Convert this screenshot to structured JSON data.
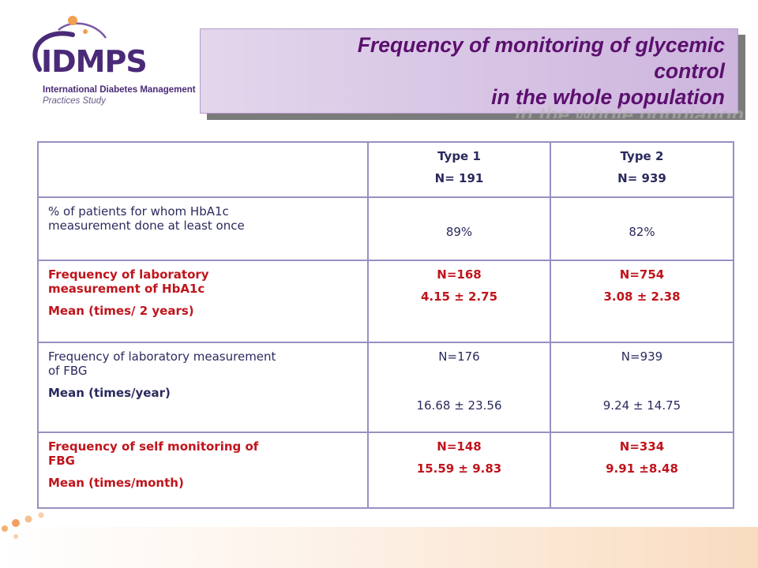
{
  "logo": {
    "abbrev": "IDMPS",
    "line1": "International Diabetes Management",
    "line2": "Practices Study"
  },
  "title": {
    "line1": "Frequency of monitoring of glycemic",
    "line2": "control",
    "line3": "in the whole population"
  },
  "table": {
    "header": {
      "type1_label": "Type 1",
      "type1_n": "N= 191",
      "type2_label": "Type 2",
      "type2_n": "N= 939"
    },
    "rows": [
      {
        "label_line1": "% of patients for whom HbA1c",
        "label_line2": "measurement done at least once",
        "type1_value": "89%",
        "type2_value": "82%"
      },
      {
        "label_line1": "Frequency of laboratory",
        "label_line2": "measurement of HbA1c",
        "label_mean": "Mean (times/ 2 years)",
        "type1_n": "N=168",
        "type1_value": "4.15 ± 2.75",
        "type2_n": "N=754",
        "type2_value": "3.08 ± 2.38"
      },
      {
        "label_line1": "Frequency of laboratory measurement",
        "label_line2": "of FBG",
        "label_mean": "Mean (times/year)",
        "type1_n": "N=176",
        "type1_value": "16.68 ± 23.56",
        "type2_n": "N=939",
        "type2_value": "9.24 ± 14.75"
      },
      {
        "label_line1": "Frequency of self monitoring of",
        "label_line2": "FBG",
        "label_mean": "Mean (times/month)",
        "type1_n": "N=148",
        "type1_value": "15.59 ± 9.83",
        "type2_n": "N=334",
        "type2_value": "9.91 ±8.48"
      }
    ]
  },
  "colors": {
    "title_text": "#5b0f6e",
    "highlight_red": "#c0141c",
    "body_navy": "#2a2a5e",
    "table_border": "#9a8fc2",
    "logo_purple": "#4a2a78",
    "decor_orange": "#f0a050"
  }
}
